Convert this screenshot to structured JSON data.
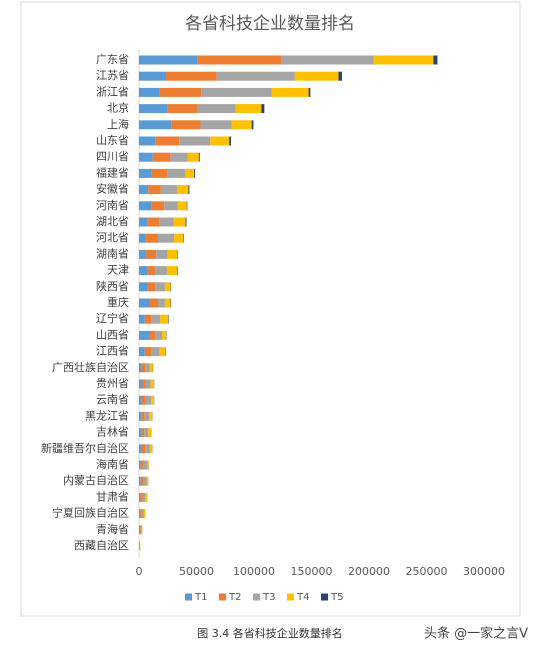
{
  "chart_data": {
    "type": "stacked-hbar",
    "title": "各省科技企业数量排名",
    "categories": [
      "广东省",
      "江苏省",
      "浙江省",
      "北京",
      "上海",
      "山东省",
      "四川省",
      "福建省",
      "安徽省",
      "河南省",
      "湖北省",
      "河北省",
      "湖南省",
      "天津",
      "陕西省",
      "重庆",
      "辽宁省",
      "山西省",
      "江西省",
      "广西壮族自治区",
      "贵州省",
      "云南省",
      "黑龙江省",
      "吉林省",
      "新疆维吾尔自治区",
      "海南省",
      "内蒙古自治区",
      "甘肃省",
      "宁夏回族自治区",
      "青海省",
      "西藏自治区"
    ],
    "series": [
      {
        "name": "T1",
        "color": "#5b9bd5",
        "values": [
          51000,
          23500,
          18000,
          25000,
          28500,
          14000,
          12000,
          11000,
          8000,
          11000,
          7000,
          6000,
          6000,
          7000,
          7000,
          9500,
          5000,
          9500,
          5000,
          2500,
          3000,
          2500,
          2000,
          2000,
          2000,
          1500,
          1500,
          1000,
          800,
          500,
          200
        ]
      },
      {
        "name": "T2",
        "color": "#ed7d31",
        "values": [
          73000,
          44000,
          36500,
          26000,
          25000,
          21000,
          15500,
          14000,
          11000,
          11000,
          11000,
          10500,
          9000,
          7000,
          7000,
          7000,
          5500,
          4500,
          6000,
          3000,
          3000,
          3500,
          3000,
          2500,
          3500,
          2500,
          2000,
          2000,
          1500,
          800,
          300
        ]
      },
      {
        "name": "T3",
        "color": "#a5a5a5",
        "values": [
          80000,
          68000,
          61000,
          33000,
          27000,
          27000,
          15000,
          15000,
          14000,
          11500,
          12000,
          14000,
          10000,
          10500,
          8500,
          6000,
          8000,
          6000,
          7000,
          4000,
          4000,
          4500,
          4000,
          3500,
          4000,
          3000,
          3000,
          2500,
          2000,
          1000,
          400
        ]
      },
      {
        "name": "T4",
        "color": "#ffc000",
        "values": [
          52000,
          38000,
          32000,
          22500,
          17500,
          16500,
          9500,
          8000,
          10000,
          8000,
          10500,
          8000,
          8000,
          8500,
          5000,
          5000,
          7000,
          3500,
          5000,
          2500,
          3000,
          2500,
          2500,
          2500,
          2000,
          1500,
          1500,
          1500,
          1000,
          600,
          300
        ]
      },
      {
        "name": "T5",
        "color": "#264478",
        "values": [
          3500,
          3000,
          1500,
          2500,
          1500,
          1500,
          800,
          800,
          800,
          500,
          800,
          500,
          500,
          500,
          400,
          400,
          400,
          300,
          300,
          200,
          200,
          200,
          200,
          200,
          200,
          100,
          100,
          100,
          100,
          50,
          20
        ]
      }
    ],
    "xlim": [
      0,
      300000
    ],
    "xticks": [
      0,
      50000,
      100000,
      150000,
      200000,
      250000,
      300000
    ],
    "grid": false,
    "legend": "bottom",
    "caption": "图 3.4  各省科技企业数量排名",
    "watermark": "头条 @一家之言V"
  }
}
